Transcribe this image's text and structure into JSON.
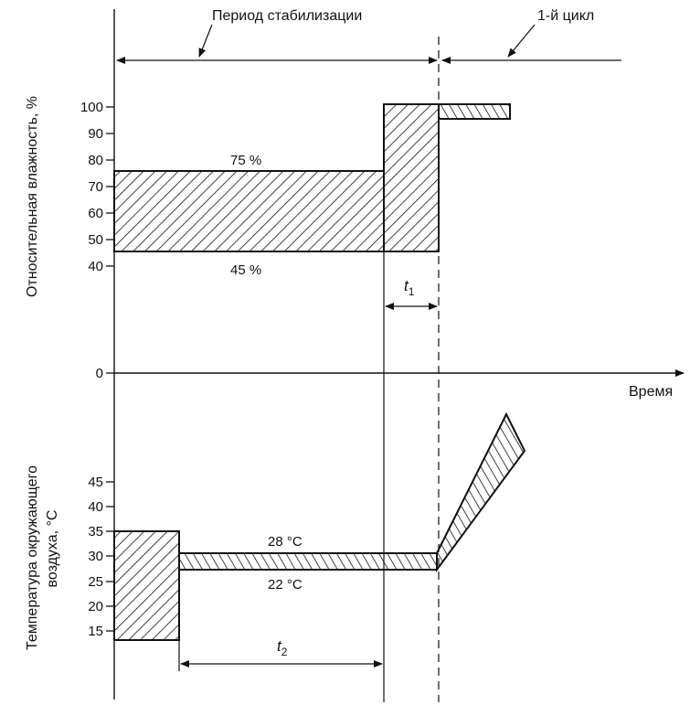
{
  "header": {
    "stabilization_period": "Период стабилизации",
    "first_cycle": "1-й цикл"
  },
  "humidity_axis": {
    "title": "Относительная влажность, %",
    "ticks": [
      "100",
      "90",
      "80",
      "70",
      "60",
      "50",
      "40"
    ],
    "zero": "0",
    "upper_label": "75 %",
    "lower_label": "45 %"
  },
  "time_axis": {
    "title": "Время"
  },
  "temperature_axis": {
    "title_line1": "Температура окружающего",
    "title_line2": "воздуха, °С",
    "ticks": [
      "45",
      "40",
      "35",
      "30",
      "25",
      "20",
      "15"
    ],
    "upper_label": "28 °С",
    "lower_label": "22 °С"
  },
  "intervals": {
    "t1_letter": "t",
    "t1_sub": "1",
    "t2_letter": "t",
    "t2_sub": "2"
  },
  "colors": {
    "ink": "#111111",
    "background": "#ffffff"
  }
}
